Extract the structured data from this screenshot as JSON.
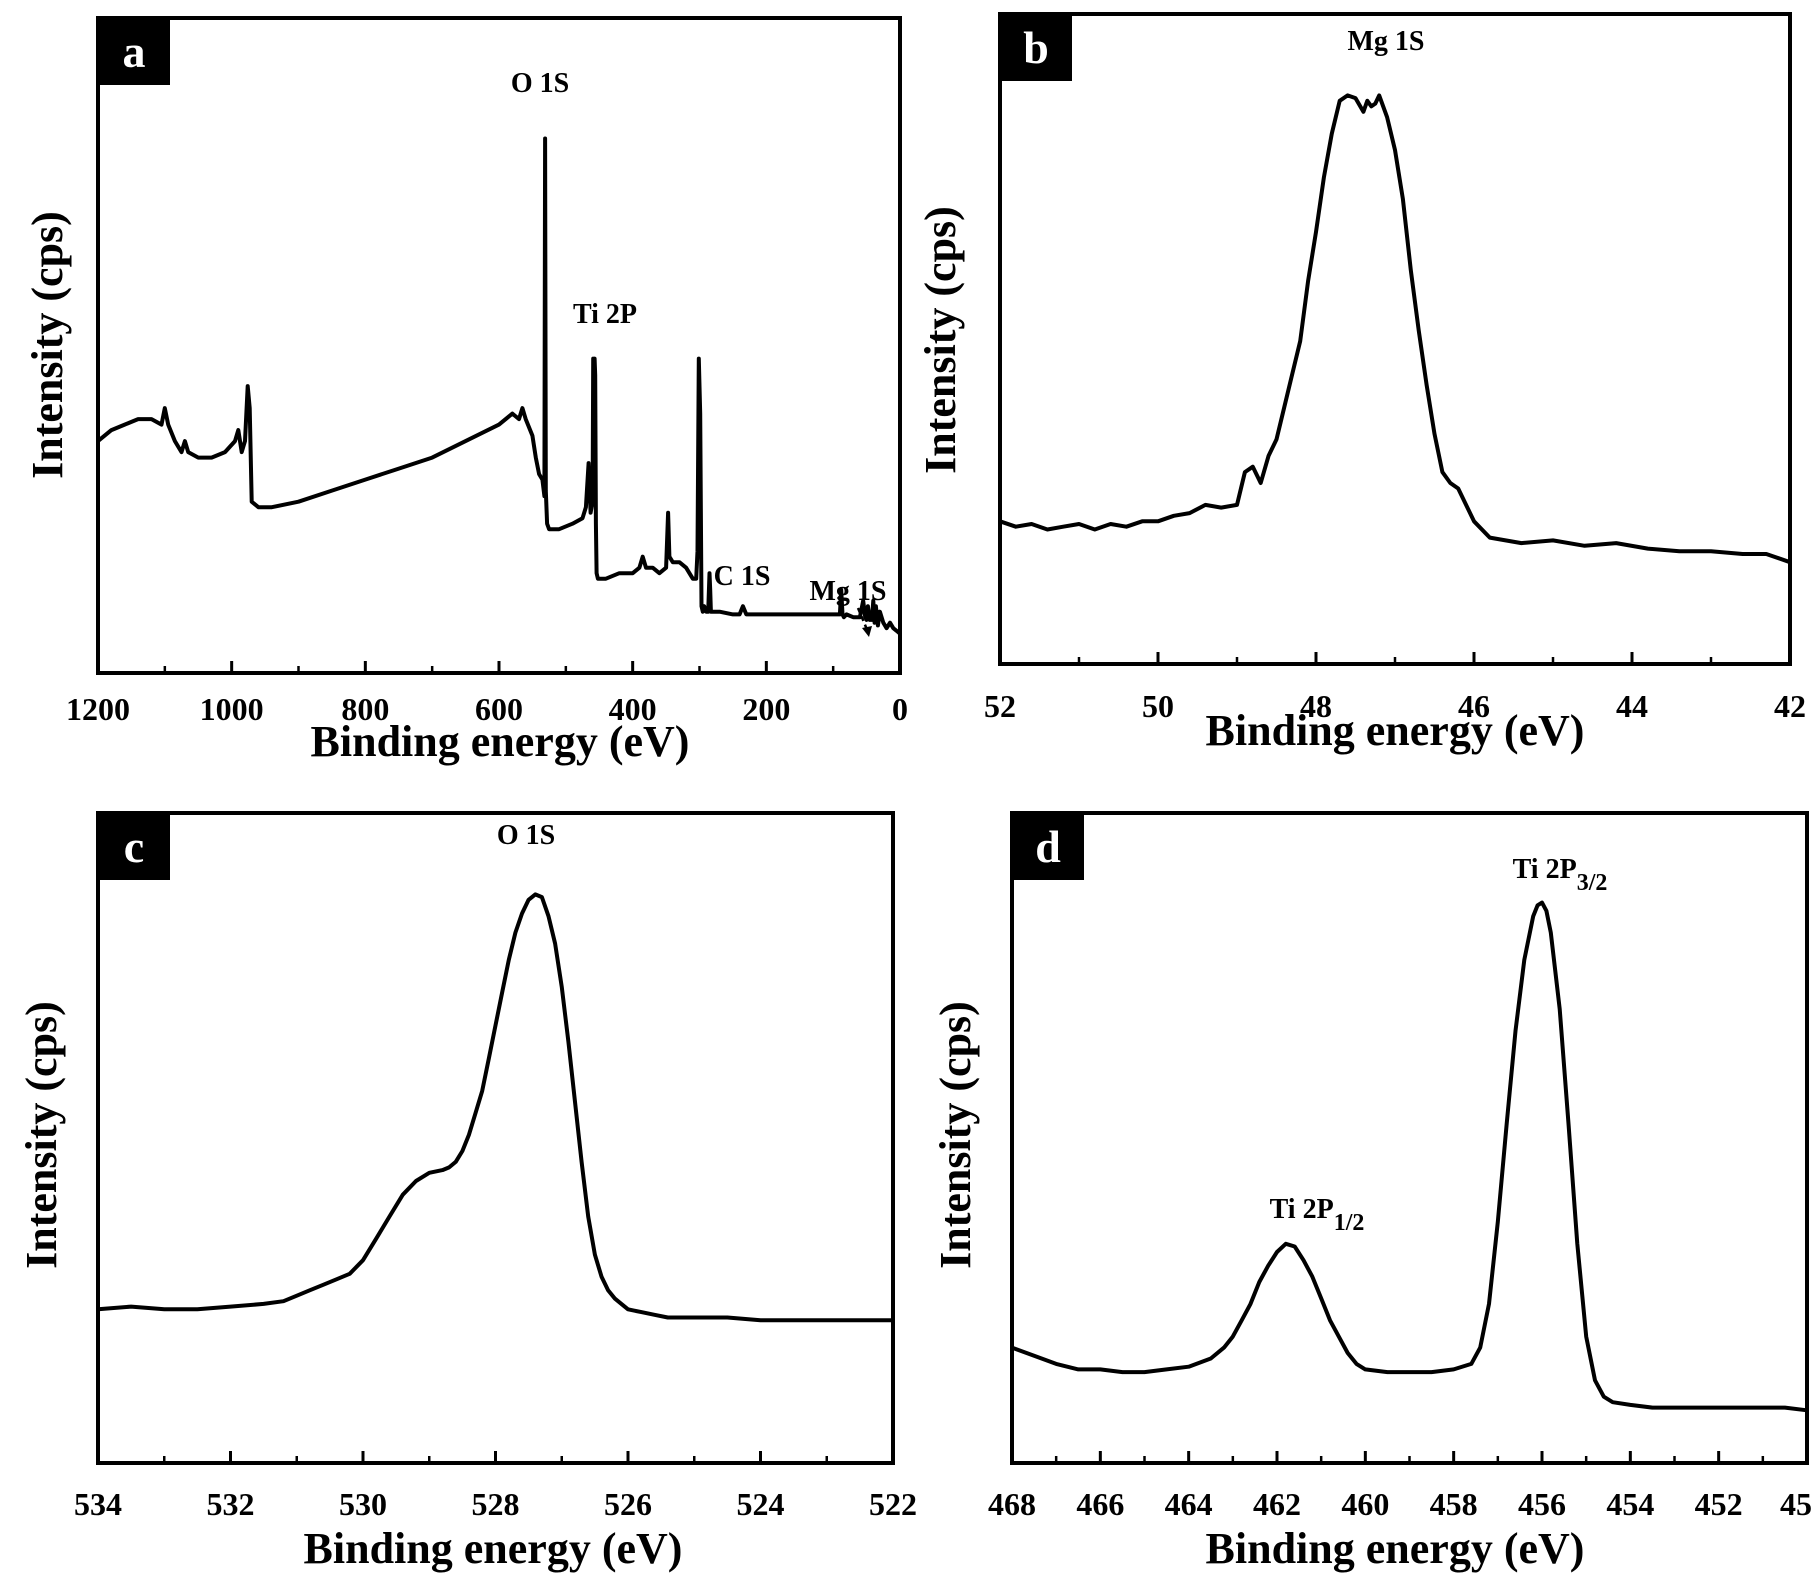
{
  "chart_data": [
    {
      "panel": "a",
      "type": "line",
      "xlabel": "Binding energy (eV)",
      "ylabel": "Intensity (cps)",
      "xlim": [
        1200,
        0
      ],
      "ylim": [
        0,
        100
      ],
      "xticks": [
        "1200",
        "1000",
        "800",
        "600",
        "400",
        "200",
        "0"
      ],
      "grid": false,
      "series": [
        {
          "x": [
            1200,
            1180,
            1160,
            1140,
            1120,
            1105,
            1100,
            1095,
            1085,
            1075,
            1070,
            1065,
            1050,
            1030,
            1010,
            995,
            990,
            985,
            980,
            976,
            973,
            970,
            960,
            940,
            900,
            850,
            800,
            750,
            700,
            650,
            600,
            580,
            570,
            565,
            560,
            550,
            545,
            540,
            535,
            532,
            531,
            530,
            528,
            525,
            510,
            490,
            475,
            470,
            466,
            463,
            460,
            459,
            458,
            457,
            456,
            455,
            454,
            452,
            450,
            440,
            420,
            400,
            390,
            385,
            380,
            370,
            360,
            350,
            347,
            345,
            340,
            330,
            320,
            310,
            305,
            303,
            301,
            299,
            297,
            295,
            293,
            290,
            287,
            285,
            284,
            283,
            280,
            270,
            250,
            240,
            235,
            230,
            200,
            150,
            100,
            90,
            88,
            86,
            84,
            80,
            70,
            60,
            55,
            52,
            50,
            48,
            45,
            42,
            40,
            38,
            36,
            33,
            30,
            25,
            20,
            15,
            10,
            5,
            0
          ],
          "y": [
            35,
            37,
            38,
            39,
            39,
            38,
            41,
            38,
            35,
            33,
            35,
            33,
            32,
            32,
            33,
            35,
            37,
            33,
            35,
            45,
            41,
            24,
            23,
            23,
            24,
            26,
            28,
            30,
            32,
            35,
            38,
            40,
            39,
            41,
            39,
            36,
            32,
            29,
            28,
            25,
            90,
            26,
            20,
            19,
            19,
            20,
            21,
            23,
            31,
            22,
            24,
            50,
            49,
            50,
            47,
            20,
            11,
            10,
            10,
            10,
            11,
            11,
            12,
            14,
            12,
            12,
            11,
            12,
            22,
            14,
            13,
            13,
            12,
            10,
            10,
            15,
            50,
            40,
            5,
            4,
            5,
            4,
            4,
            11,
            8,
            4,
            4,
            4,
            3.5,
            3.5,
            5,
            3.5,
            3.5,
            3.5,
            3.5,
            3.5,
            8,
            3.5,
            3,
            3.5,
            3,
            3,
            6,
            3,
            2.5,
            5,
            2.5,
            2.5,
            6,
            2,
            5,
            1.5,
            4,
            2,
            1,
            2,
            1,
            0.5,
            0
          ]
        }
      ],
      "annotations": [
        "O 1S",
        "Ti 2P",
        "C 1S",
        "Mg 1S"
      ]
    },
    {
      "panel": "b",
      "type": "line",
      "xlabel": "Binding energy (eV)",
      "ylabel": "Intensity (cps)",
      "xlim": [
        52,
        42
      ],
      "ylim": [
        0,
        100
      ],
      "xticks": [
        "52",
        "50",
        "48",
        "46",
        "44",
        "42"
      ],
      "grid": false,
      "series": [
        {
          "x": [
            52,
            51.8,
            51.6,
            51.4,
            51.2,
            51.0,
            50.8,
            50.6,
            50.4,
            50.2,
            50.0,
            49.8,
            49.6,
            49.4,
            49.2,
            49.0,
            48.9,
            48.8,
            48.7,
            48.6,
            48.5,
            48.4,
            48.3,
            48.2,
            48.1,
            48.0,
            47.9,
            47.8,
            47.7,
            47.6,
            47.5,
            47.4,
            47.35,
            47.3,
            47.25,
            47.2,
            47.1,
            47.0,
            46.9,
            46.8,
            46.7,
            46.6,
            46.5,
            46.4,
            46.3,
            46.2,
            46.0,
            45.8,
            45.6,
            45.4,
            45.0,
            44.6,
            44.2,
            43.8,
            43.4,
            43.0,
            42.6,
            42.3,
            42.0
          ],
          "y": [
            19,
            18,
            18.5,
            17.5,
            18,
            18.5,
            17.5,
            18.5,
            18,
            19,
            19,
            20,
            20.5,
            22,
            21.5,
            22,
            28,
            29,
            26,
            31,
            34,
            40,
            46,
            52,
            63,
            72,
            82,
            90,
            96,
            97,
            96.5,
            94,
            96,
            95,
            95.5,
            97,
            93,
            87,
            78,
            65,
            54,
            44,
            35,
            28,
            26,
            25,
            19,
            16,
            15.5,
            15,
            15.5,
            14.5,
            15,
            14,
            13.5,
            13.5,
            13,
            13,
            11.5
          ]
        }
      ],
      "annotations": [
        "Mg 1S"
      ]
    },
    {
      "panel": "c",
      "type": "line",
      "xlabel": "Binding energy (eV)",
      "ylabel": "Intensity (cps)",
      "xlim": [
        534,
        522
      ],
      "ylim": [
        0,
        100
      ],
      "xticks": [
        "534",
        "532",
        "530",
        "528",
        "526",
        "524",
        "522"
      ],
      "grid": false,
      "series": [
        {
          "x": [
            534,
            533.5,
            533,
            532.5,
            532,
            531.5,
            531.2,
            531,
            530.8,
            530.6,
            530.4,
            530.2,
            530.0,
            529.8,
            529.6,
            529.4,
            529.2,
            529.0,
            528.8,
            528.7,
            528.6,
            528.5,
            528.4,
            528.3,
            528.2,
            528.1,
            528.0,
            527.9,
            527.8,
            527.7,
            527.6,
            527.5,
            527.4,
            527.3,
            527.2,
            527.1,
            527.0,
            526.9,
            526.8,
            526.7,
            526.6,
            526.5,
            526.4,
            526.3,
            526.2,
            526.1,
            526.0,
            525.8,
            525.6,
            525.4,
            525.0,
            524.5,
            524.0,
            523.5,
            523.0,
            522.5,
            522.0
          ],
          "y": [
            21,
            21.5,
            21,
            21,
            21.5,
            22,
            22.5,
            23.5,
            24.5,
            25.5,
            26.5,
            27.5,
            30,
            34,
            38,
            42,
            44.5,
            46,
            46.5,
            47,
            48,
            50,
            53,
            57,
            61,
            67,
            73,
            79,
            85,
            90,
            93.5,
            96,
            97,
            96.5,
            93,
            88,
            80,
            70,
            59,
            48,
            38,
            31,
            27,
            24.5,
            23,
            22,
            21,
            20.5,
            20,
            19.5,
            19.5,
            19.5,
            19,
            19,
            19,
            19,
            19
          ]
        }
      ],
      "annotations": [
        "O 1S"
      ]
    },
    {
      "panel": "d",
      "type": "line",
      "xlabel": "Binding energy (eV)",
      "ylabel": "Intensity (cps)",
      "xlim": [
        468,
        450
      ],
      "ylim": [
        0,
        100
      ],
      "xticks": [
        "468",
        "466",
        "464",
        "462",
        "460",
        "458",
        "456",
        "454",
        "452",
        "45"
      ],
      "grid": false,
      "series": [
        {
          "x": [
            468,
            467.5,
            467,
            466.5,
            466,
            465.5,
            465,
            464.5,
            464,
            463.5,
            463.2,
            463,
            462.8,
            462.6,
            462.4,
            462.2,
            462.0,
            461.8,
            461.6,
            461.4,
            461.2,
            461.0,
            460.8,
            460.6,
            460.4,
            460.2,
            460.0,
            459.5,
            459.0,
            458.5,
            458.0,
            457.6,
            457.4,
            457.2,
            457.0,
            456.8,
            456.6,
            456.4,
            456.2,
            456.1,
            456.0,
            455.9,
            455.8,
            455.6,
            455.4,
            455.2,
            455.0,
            454.8,
            454.6,
            454.4,
            454.0,
            453.5,
            453.0,
            452.5,
            452.0,
            451.5,
            451.0,
            450.5,
            450.0
          ],
          "y": [
            14,
            12.5,
            11,
            10,
            10,
            9.5,
            9.5,
            10,
            10.5,
            12,
            14,
            16,
            19,
            22,
            26,
            29,
            31.5,
            33,
            32.5,
            30,
            27,
            23,
            19,
            16,
            13,
            11,
            10,
            9.5,
            9.5,
            9.5,
            10,
            11,
            14,
            22,
            37,
            55,
            72,
            85,
            93,
            95,
            95.5,
            94,
            90,
            76,
            55,
            33,
            16,
            8,
            5,
            4,
            3.5,
            3,
            3,
            3,
            3,
            3,
            3,
            3,
            2.5
          ]
        }
      ],
      "annotations": [
        "Ti 2P3/2",
        "Ti 2P1/2"
      ]
    }
  ],
  "labels": {
    "a": {
      "letter": "a",
      "peaks": [
        {
          "text": "O 1S"
        },
        {
          "text": "Ti 2P"
        },
        {
          "text": "C 1S"
        },
        {
          "text": "Mg 1S"
        }
      ]
    },
    "b": {
      "letter": "b",
      "peaks": [
        {
          "text": "Mg 1S"
        }
      ]
    },
    "c": {
      "letter": "c",
      "peaks": [
        {
          "text": "O 1S"
        }
      ]
    },
    "d": {
      "letter": "d",
      "peaks": [
        {
          "main": "Ti 2P",
          "sub": "3/2"
        },
        {
          "main": "Ti 2P",
          "sub": "1/2"
        }
      ]
    }
  }
}
